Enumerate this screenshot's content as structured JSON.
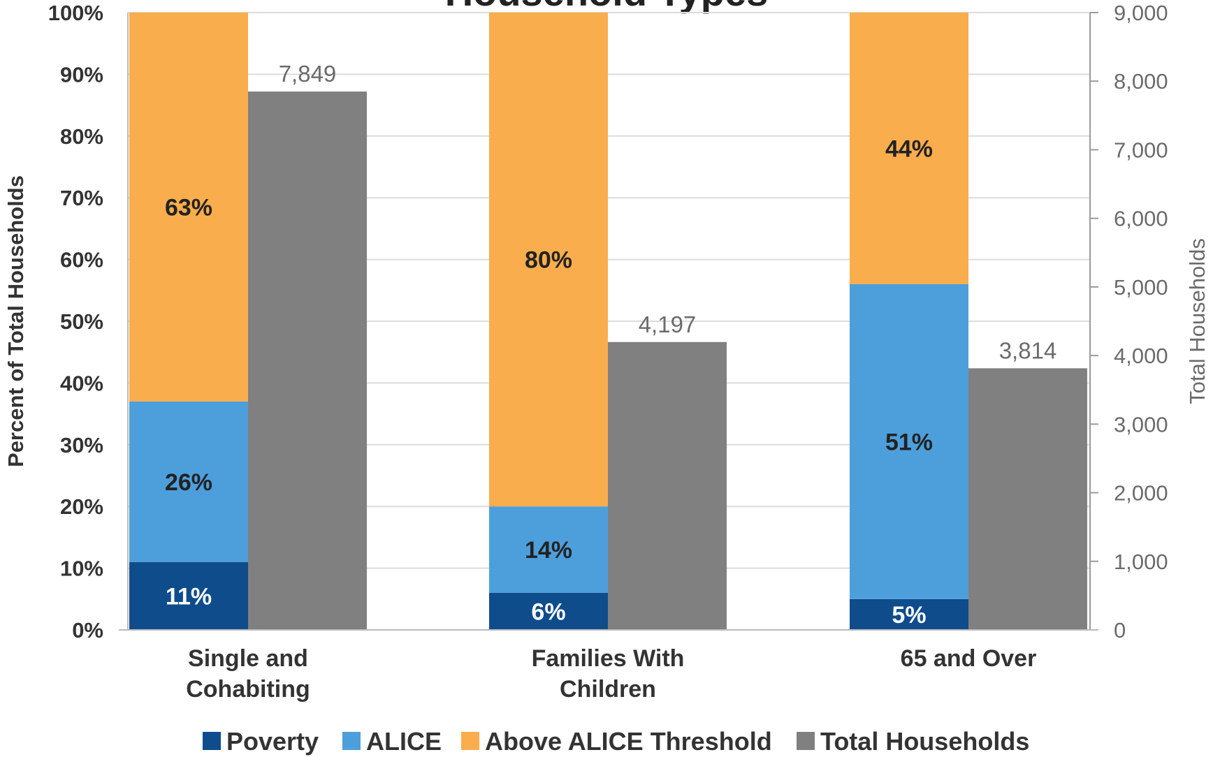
{
  "chart_data": {
    "type": "bar",
    "title": "Household Types",
    "categories": [
      "Single and Cohabiting",
      "Families With Children",
      "65 and Over"
    ],
    "category_lines": [
      [
        "Single and",
        "Cohabiting"
      ],
      [
        "Families With",
        "Children"
      ],
      [
        "65 and Over"
      ]
    ],
    "y_left": {
      "label": "Percent of Total Households",
      "range": [
        0,
        100
      ],
      "ticks": [
        "0%",
        "10%",
        "20%",
        "30%",
        "40%",
        "50%",
        "60%",
        "70%",
        "80%",
        "90%",
        "100%"
      ]
    },
    "y_right": {
      "label": "Total Households",
      "range": [
        0,
        9000
      ],
      "ticks": [
        "0",
        "1,000",
        "2,000",
        "3,000",
        "4,000",
        "5,000",
        "6,000",
        "7,000",
        "8,000",
        "9,000"
      ]
    },
    "stacked_series": [
      {
        "name": "Poverty",
        "color": "#0f4c8c",
        "label_color": "#ffffff",
        "values": [
          11,
          6,
          5
        ],
        "labels": [
          "11%",
          "6%",
          "5%"
        ]
      },
      {
        "name": "ALICE",
        "color": "#4d9fdc",
        "label_color": "#222222",
        "values": [
          26,
          14,
          51
        ],
        "labels": [
          "26%",
          "14%",
          "51%"
        ]
      },
      {
        "name": "Above ALICE Threshold",
        "color": "#f9ad4d",
        "label_color": "#222222",
        "values": [
          63,
          80,
          44
        ],
        "labels": [
          "63%",
          "80%",
          "44%"
        ]
      }
    ],
    "total_series": {
      "name": "Total Households",
      "color": "#808080",
      "values": [
        7849,
        4197,
        3814
      ],
      "labels": [
        "7,849",
        "4,197",
        "3,814"
      ]
    },
    "legend_position": "bottom",
    "grid": true
  }
}
